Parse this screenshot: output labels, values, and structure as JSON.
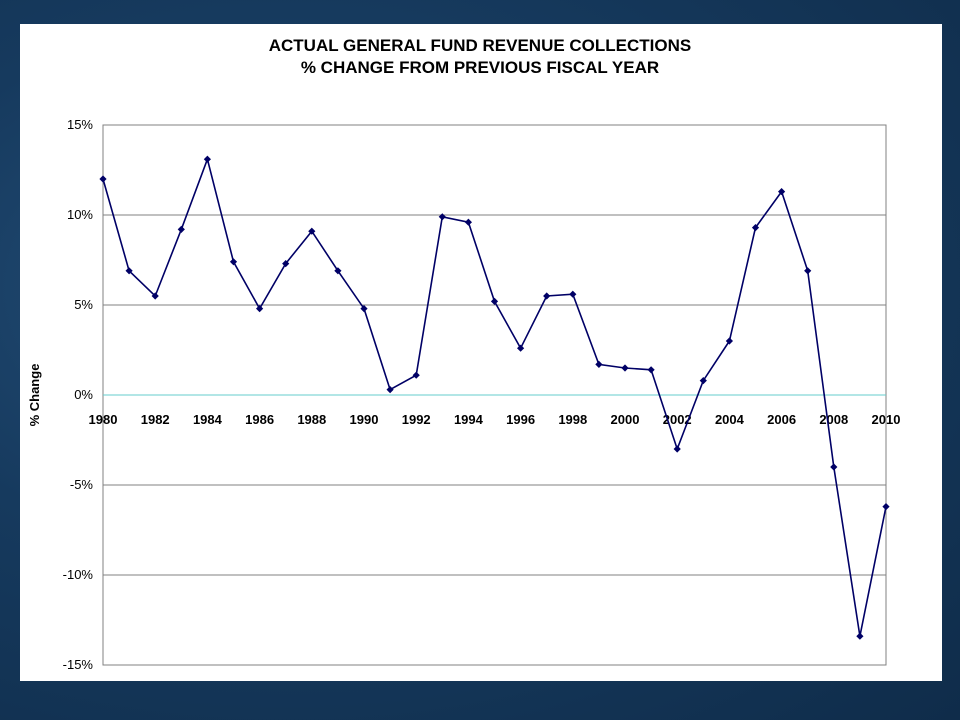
{
  "chart_data": {
    "type": "line",
    "title": "ACTUAL GENERAL FUND REVENUE COLLECTIONS",
    "subtitle": "% CHANGE FROM PREVIOUS FISCAL YEAR",
    "ylabel": "% Change",
    "xlabel": "",
    "ylim": [
      -15,
      15
    ],
    "yticks": [
      15,
      10,
      5,
      0,
      -5,
      -10,
      -15
    ],
    "ytick_labels": [
      "15%",
      "10%",
      "5%",
      "0%",
      "-5%",
      "-10%",
      "-15%"
    ],
    "xlim": [
      1980,
      2010
    ],
    "xtick_labels": [
      "1980",
      "1982",
      "1984",
      "1986",
      "1988",
      "1990",
      "1992",
      "1994",
      "1996",
      "1998",
      "2000",
      "2002",
      "2004",
      "2006",
      "2008",
      "2010"
    ],
    "grid": true,
    "legend": "none",
    "colors": {
      "series": "#000066",
      "zero_line": "#66cccc",
      "grid": "#808080"
    },
    "series": [
      {
        "marker": "diamond",
        "x": [
          1980,
          1981,
          1982,
          1983,
          1984,
          1985,
          1986,
          1987,
          1988,
          1989,
          1990,
          1991,
          1992,
          1993,
          1994,
          1995,
          1996,
          1997,
          1998,
          1999,
          2000,
          2001,
          2002,
          2003,
          2004,
          2005,
          2006,
          2007,
          2008,
          2009,
          2010
        ],
        "values": [
          12.0,
          6.9,
          5.5,
          9.2,
          13.1,
          7.4,
          4.8,
          7.3,
          9.1,
          6.9,
          4.8,
          0.3,
          1.1,
          9.9,
          9.6,
          5.2,
          2.6,
          5.5,
          5.6,
          1.7,
          1.5,
          1.4,
          -3.0,
          0.8,
          3.0,
          9.3,
          11.3,
          6.9,
          -4.0,
          -13.4,
          -6.2
        ]
      }
    ]
  }
}
